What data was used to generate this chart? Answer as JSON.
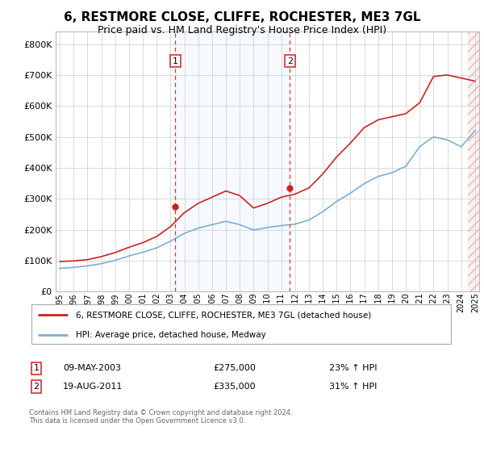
{
  "title": "6, RESTMORE CLOSE, CLIFFE, ROCHESTER, ME3 7GL",
  "subtitle": "Price paid vs. HM Land Registry's House Price Index (HPI)",
  "title_fontsize": 11,
  "subtitle_fontsize": 9,
  "years": [
    1995,
    1996,
    1997,
    1998,
    1999,
    2000,
    2001,
    2002,
    2003,
    2004,
    2005,
    2006,
    2007,
    2008,
    2009,
    2010,
    2011,
    2012,
    2013,
    2014,
    2015,
    2016,
    2017,
    2018,
    2019,
    2020,
    2021,
    2022,
    2023,
    2024,
    2025
  ],
  "red_y": [
    97000,
    99000,
    103000,
    113000,
    126000,
    143000,
    158000,
    178000,
    210000,
    255000,
    285000,
    305000,
    325000,
    310000,
    270000,
    285000,
    305000,
    315000,
    335000,
    380000,
    435000,
    480000,
    530000,
    555000,
    565000,
    575000,
    610000,
    695000,
    700000,
    690000,
    680000
  ],
  "blue_y": [
    75000,
    78000,
    83000,
    90000,
    101000,
    115000,
    127000,
    141000,
    163000,
    188000,
    205000,
    216000,
    227000,
    216000,
    199000,
    207000,
    213000,
    218000,
    231000,
    258000,
    291000,
    318000,
    349000,
    372000,
    384000,
    405000,
    468000,
    500000,
    490000,
    468000,
    520000
  ],
  "sale1_year": 2003.35,
  "sale1_price": 275000,
  "sale2_year": 2011.63,
  "sale2_price": 335000,
  "hpi_line_color": "#7bafd4",
  "price_line_color": "#cc2222",
  "sale_marker_color": "#cc2222",
  "dashed_line_color": "#dd3333",
  "highlight_fill_color": "#ddeeff",
  "hatch_fill_color": "#f5dddd",
  "legend_label1": "6, RESTMORE CLOSE, CLIFFE, ROCHESTER, ME3 7GL (detached house)",
  "legend_label2": "HPI: Average price, detached house, Medway",
  "footer": "Contains HM Land Registry data © Crown copyright and database right 2024.\nThis data is licensed under the Open Government Licence v3.0.",
  "ylim": [
    0,
    840000
  ],
  "yticks": [
    0,
    100000,
    200000,
    300000,
    400000,
    500000,
    600000,
    700000,
    800000
  ],
  "xlim_left": 1994.7,
  "xlim_right": 2025.3
}
